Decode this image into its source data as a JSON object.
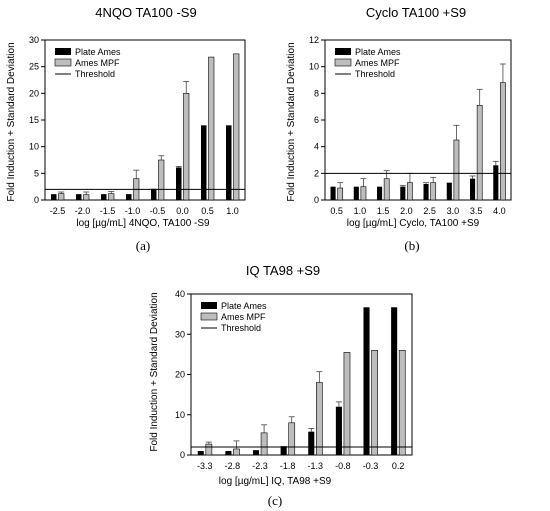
{
  "chart_data": [
    {
      "id": "a",
      "type": "bar",
      "title": "4NQO TA100 -S9",
      "xlabel": "log [µg/mL] 4NQO, TA100 -S9",
      "ylabel": "Fold Induction + Standard Deviation",
      "caption": "(a)",
      "categories": [
        "-2.5",
        "-2.0",
        "-1.5",
        "-1.0",
        "-0.5",
        "0.0",
        "0.5",
        "1.0"
      ],
      "ylim": [
        0,
        30
      ],
      "yticks": [
        "0",
        "5",
        "10",
        "15",
        "20",
        "25",
        "30"
      ],
      "threshold": 2,
      "legend": [
        "Plate Ames",
        "Ames MPF",
        "Threshold"
      ],
      "legend_position": "top-left",
      "series": [
        {
          "name": "Plate Ames",
          "color": "#000000",
          "values": [
            1.1,
            1.1,
            1.1,
            1.1,
            2.1,
            6.1,
            14.0,
            14.0
          ],
          "errors": [
            0,
            0,
            0,
            0,
            0,
            0.2,
            0,
            0
          ]
        },
        {
          "name": "Ames MPF",
          "color": "#bdbdbd",
          "values": [
            1.2,
            1.0,
            1.2,
            4.0,
            7.5,
            20.0,
            26.8,
            27.4
          ],
          "errors": [
            0.3,
            0.5,
            0.4,
            1.6,
            0.8,
            2.2,
            0,
            0
          ]
        }
      ]
    },
    {
      "id": "b",
      "type": "bar",
      "title": "Cyclo TA100 +S9",
      "xlabel": "log [µg/mL] Cyclo, TA100 +S9",
      "ylabel": "Fold Induction + Standard Deviation",
      "caption": "(b)",
      "categories": [
        "0.5",
        "1.0",
        "1.5",
        "2.0",
        "2.5",
        "3.0",
        "3.5",
        "4.0"
      ],
      "ylim": [
        0,
        12
      ],
      "yticks": [
        "0",
        "2",
        "4",
        "6",
        "8",
        "10",
        "12"
      ],
      "threshold": 2,
      "legend": [
        "Plate Ames",
        "Ames MPF",
        "Threshold"
      ],
      "legend_position": "top-left",
      "series": [
        {
          "name": "Plate Ames",
          "color": "#000000",
          "values": [
            1.0,
            1.0,
            1.0,
            1.0,
            1.2,
            1.3,
            1.6,
            2.6
          ],
          "errors": [
            0,
            0,
            0,
            0.1,
            0.1,
            0,
            0.2,
            0.3
          ]
        },
        {
          "name": "Ames MPF",
          "color": "#bdbdbd",
          "values": [
            0.9,
            1.0,
            1.6,
            1.3,
            1.3,
            4.5,
            7.1,
            8.8
          ],
          "errors": [
            0.4,
            0.6,
            0.6,
            0.7,
            0.4,
            1.1,
            1.2,
            1.4
          ]
        }
      ]
    },
    {
      "id": "c",
      "type": "bar",
      "title": "IQ TA98 +S9",
      "xlabel": "log [µg/mL] IQ, TA98 +S9",
      "ylabel": "Fold Induction + Standard Deviation",
      "caption": "(c)",
      "categories": [
        "-3.3",
        "-2.8",
        "-2.3",
        "-1.8",
        "-1.3",
        "-0.8",
        "-0.3",
        "0.2"
      ],
      "ylim": [
        0,
        40
      ],
      "yticks": [
        "0",
        "10",
        "20",
        "30",
        "40"
      ],
      "threshold": 2,
      "legend": [
        "Plate Ames",
        "Ames MPF",
        "Threshold"
      ],
      "legend_position": "top-left",
      "series": [
        {
          "name": "Plate Ames",
          "color": "#000000",
          "values": [
            1.0,
            1.0,
            1.2,
            2.2,
            5.8,
            12.0,
            36.7,
            36.7
          ],
          "errors": [
            0,
            0,
            0,
            0,
            0.8,
            1.2,
            0,
            0
          ]
        },
        {
          "name": "Ames MPF",
          "color": "#bdbdbd",
          "values": [
            2.7,
            1.5,
            5.5,
            8.0,
            18.0,
            25.5,
            26.0,
            26.0
          ],
          "errors": [
            0.5,
            2.0,
            2.0,
            1.5,
            2.7,
            0,
            0,
            0
          ]
        }
      ]
    }
  ]
}
